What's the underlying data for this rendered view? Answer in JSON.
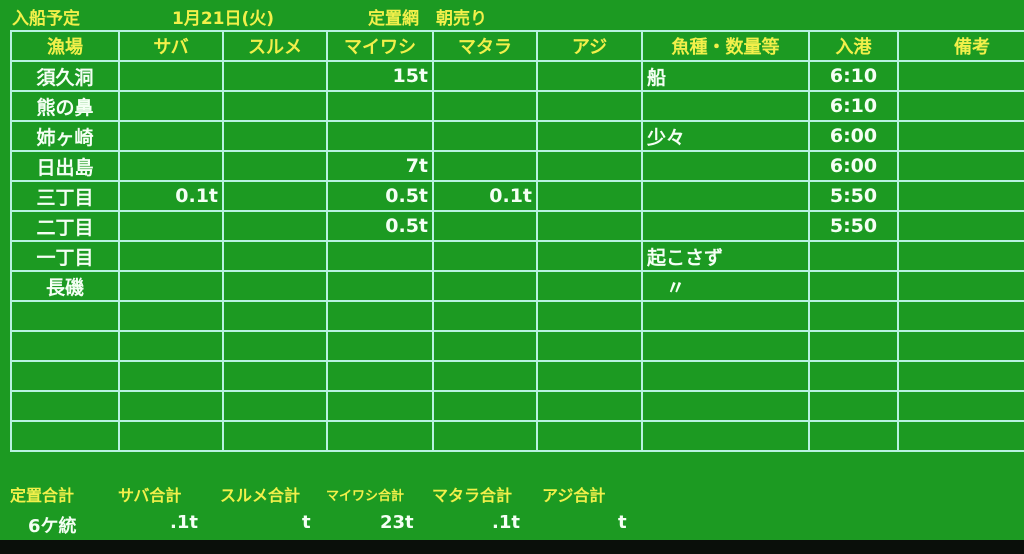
{
  "header": {
    "title": "入船予定",
    "date": "1月21日(火)",
    "type": "定置網　朝売り"
  },
  "columns": [
    "漁場",
    "サバ",
    "スルメ",
    "マイワシ",
    "マタラ",
    "アジ",
    "魚種・数量等",
    "入港",
    "備考"
  ],
  "rows": [
    [
      "須久洞",
      "",
      "",
      "15t",
      "",
      "",
      "船",
      "6:10",
      ""
    ],
    [
      "熊の鼻",
      "",
      "",
      "",
      "",
      "",
      "",
      "6:10",
      ""
    ],
    [
      "姉ヶ崎",
      "",
      "",
      "",
      "",
      "",
      "少々",
      "6:00",
      ""
    ],
    [
      "日出島",
      "",
      "",
      "7t",
      "",
      "",
      "",
      "6:00",
      ""
    ],
    [
      "三丁目",
      "0.1t",
      "",
      "0.5t",
      "0.1t",
      "",
      "",
      "5:50",
      ""
    ],
    [
      "二丁目",
      "",
      "",
      "0.5t",
      "",
      "",
      "",
      "5:50",
      ""
    ],
    [
      "一丁目",
      "",
      "",
      "",
      "",
      "",
      "起こさず",
      "",
      ""
    ],
    [
      "長磯",
      "",
      "",
      "",
      "",
      "",
      "　〃",
      "",
      ""
    ],
    [
      "",
      "",
      "",
      "",
      "",
      "",
      "",
      "",
      ""
    ],
    [
      "",
      "",
      "",
      "",
      "",
      "",
      "",
      "",
      ""
    ],
    [
      "",
      "",
      "",
      "",
      "",
      "",
      "",
      "",
      ""
    ],
    [
      "",
      "",
      "",
      "",
      "",
      "",
      "",
      "",
      ""
    ],
    [
      "",
      "",
      "",
      "",
      "",
      "",
      "",
      "",
      ""
    ]
  ],
  "totals": [
    {
      "label": "定置合計",
      "value": "6ケ統"
    },
    {
      "label": "サバ合計",
      "value": ".1t"
    },
    {
      "label": "スルメ合計",
      "value": "t"
    },
    {
      "label": "マイワシ合計",
      "value": "23t"
    },
    {
      "label": "マタラ合計",
      "value": ".1t"
    },
    {
      "label": "アジ合計",
      "value": "t"
    }
  ],
  "colors": {
    "background": "#1c9a22",
    "grid": "#b8f2e0",
    "label": "#f2f04a",
    "value": "#f4fff4"
  }
}
